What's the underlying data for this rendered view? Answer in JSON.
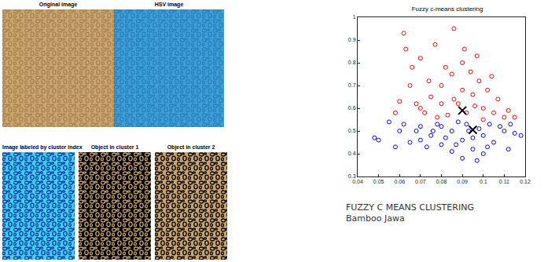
{
  "chart_data": {
    "type": "scatter",
    "title": "Fuzzy c-means clustering",
    "xlim": [
      0.04,
      0.12
    ],
    "xticks": [
      0.04,
      0.05,
      0.06,
      0.07,
      0.08,
      0.09,
      0.1,
      0.11,
      0.12
    ],
    "ylim": [
      0.3,
      1
    ],
    "yticks": [
      0.3,
      0.4,
      0.5,
      0.6,
      0.7,
      0.8,
      0.9,
      1
    ],
    "grid": false,
    "series": [
      {
        "color": "#ff0000",
        "marker": "circle-open",
        "x": [
          0.07,
          0.075,
          0.08,
          0.085,
          0.09,
          0.088,
          0.092,
          0.095,
          0.1,
          0.105,
          0.11,
          0.098,
          0.083,
          0.078,
          0.072,
          0.068,
          0.065,
          0.062,
          0.063,
          0.07,
          0.077,
          0.086,
          0.082,
          0.094,
          0.102,
          0.107,
          0.112,
          0.09,
          0.086,
          0.096,
          0.1,
          0.08,
          0.074,
          0.066,
          0.091,
          0.097,
          0.104,
          0.06,
          0.058,
          0.115
        ],
        "y": [
          0.6,
          0.65,
          0.7,
          0.75,
          0.8,
          0.62,
          0.58,
          0.66,
          0.6,
          0.58,
          0.56,
          0.72,
          0.57,
          0.56,
          0.58,
          0.62,
          0.7,
          0.93,
          0.86,
          0.82,
          0.88,
          0.95,
          0.78,
          0.76,
          0.68,
          0.64,
          0.59,
          0.68,
          0.64,
          0.61,
          0.55,
          0.62,
          0.72,
          0.78,
          0.86,
          0.83,
          0.74,
          0.63,
          0.58,
          0.56
        ]
      },
      {
        "color": "#0000ff",
        "marker": "circle-open",
        "x": [
          0.05,
          0.048,
          0.055,
          0.06,
          0.065,
          0.07,
          0.075,
          0.08,
          0.085,
          0.09,
          0.095,
          0.1,
          0.105,
          0.11,
          0.115,
          0.118,
          0.112,
          0.1,
          0.09,
          0.085,
          0.08,
          0.092,
          0.098,
          0.073,
          0.068,
          0.088,
          0.103,
          0.095,
          0.078,
          0.108,
          0.082,
          0.097,
          0.058,
          0.062,
          0.113,
          0.087,
          0.093,
          0.076,
          0.102,
          0.07
        ],
        "y": [
          0.46,
          0.47,
          0.54,
          0.5,
          0.45,
          0.52,
          0.48,
          0.44,
          0.5,
          0.46,
          0.42,
          0.48,
          0.45,
          0.5,
          0.49,
          0.48,
          0.42,
          0.4,
          0.38,
          0.41,
          0.52,
          0.53,
          0.51,
          0.43,
          0.5,
          0.54,
          0.53,
          0.47,
          0.53,
          0.52,
          0.47,
          0.37,
          0.43,
          0.53,
          0.53,
          0.44,
          0.5,
          0.5,
          0.43,
          0.46
        ]
      },
      {
        "color": "#000000",
        "marker": "x",
        "x": [
          0.09,
          0.095
        ],
        "y": [
          0.59,
          0.505
        ]
      }
    ]
  },
  "image_panels": [
    {
      "title": "Original image",
      "color": "#c9a46c",
      "spot_color": "#a9844f"
    },
    {
      "title": "HSV image",
      "color": "#3b9fd6",
      "spot_color": "#2a7fbf"
    },
    {
      "title": "Image labeled by cluster index",
      "color": "#33d6ea",
      "spot_color": "#1a2fb0"
    },
    {
      "title": "Object in cluster 1",
      "color": "#000000",
      "spot_color": "#c9a46c"
    },
    {
      "title": "Object in cluster 2",
      "color": "#c9a46c",
      "spot_color": "#000000"
    }
  ],
  "caption": [
    "FUZZY C MEANS CLUSTERING",
    "Bamboo Jawa"
  ]
}
